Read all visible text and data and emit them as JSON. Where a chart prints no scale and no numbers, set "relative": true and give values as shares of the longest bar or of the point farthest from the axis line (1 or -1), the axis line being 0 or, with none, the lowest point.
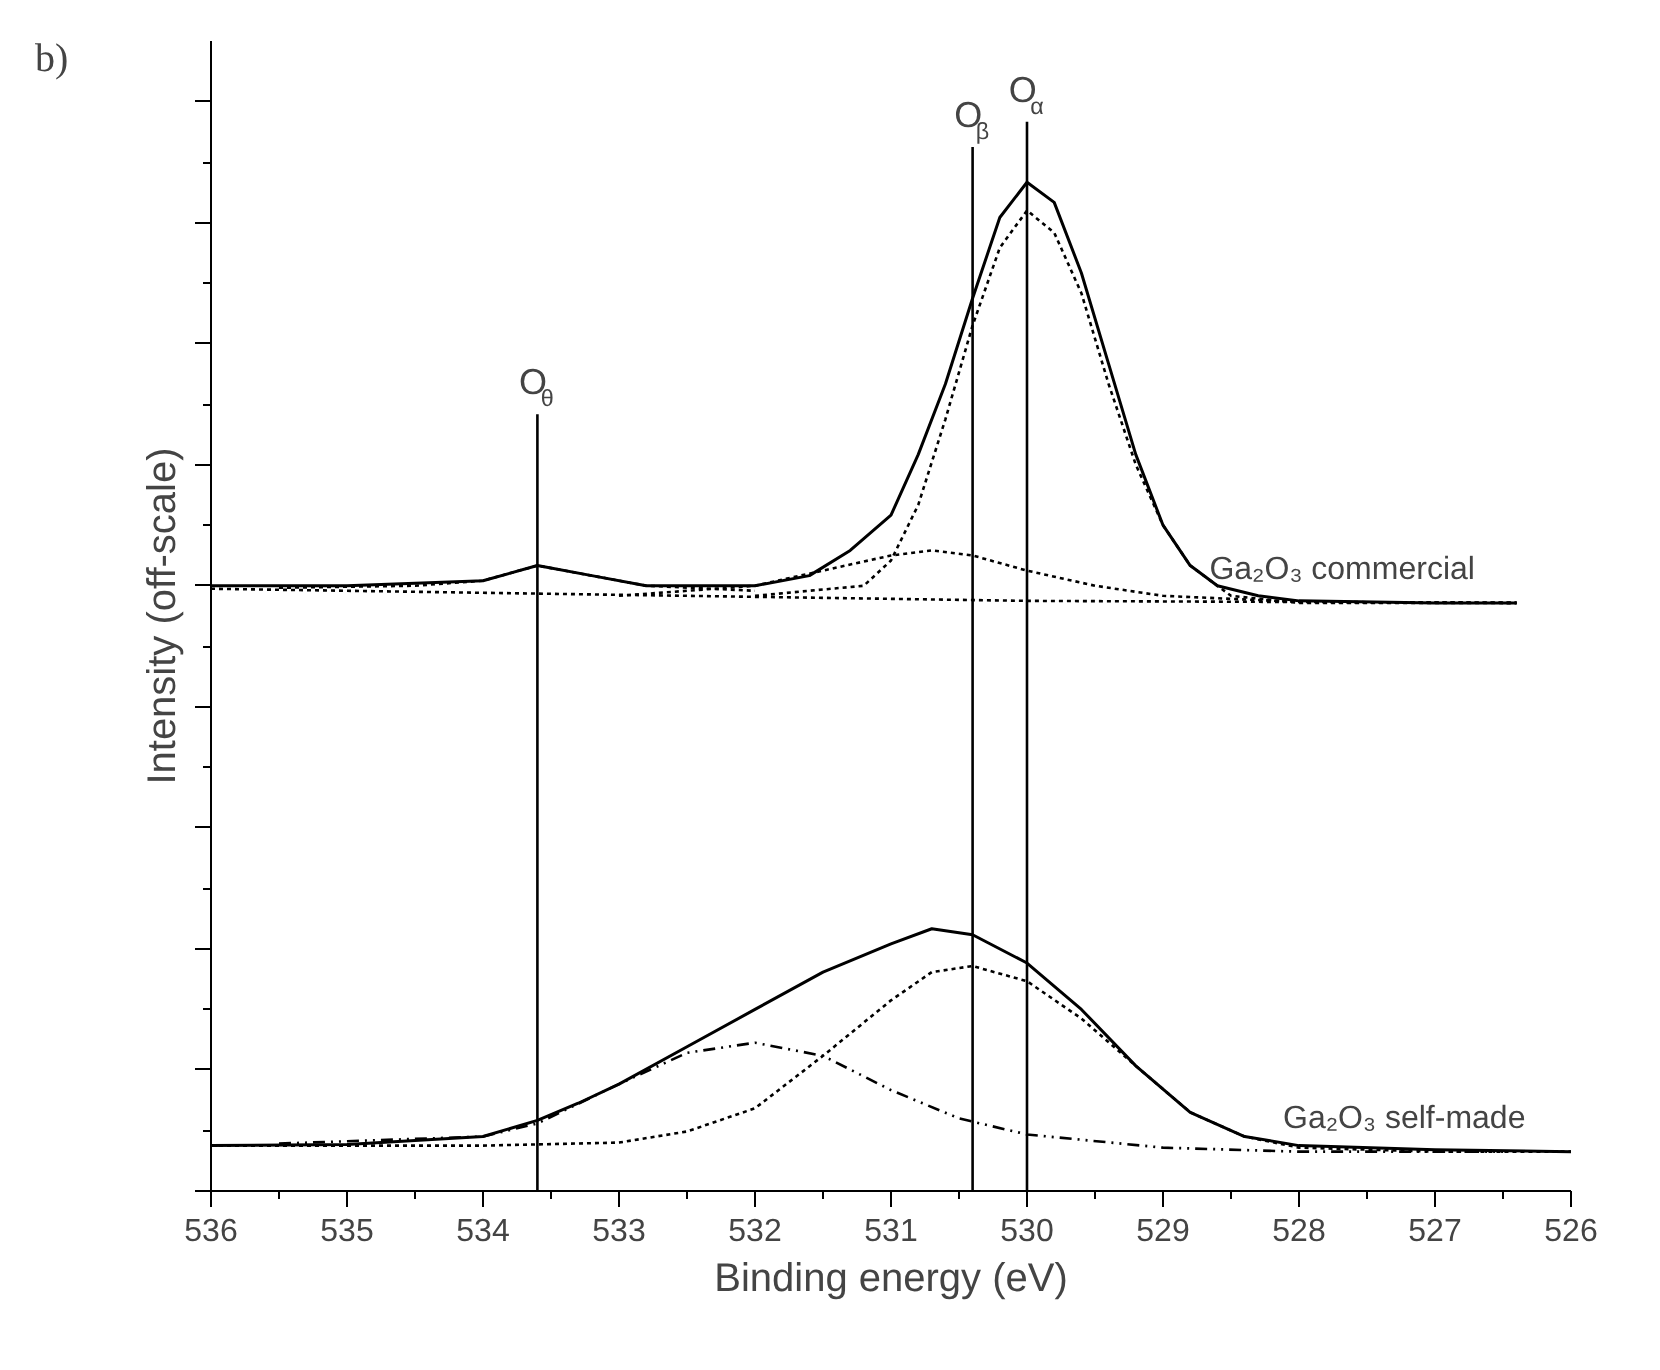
{
  "chart_data": {
    "type": "line",
    "relative": true,
    "title": "b)",
    "xlabel": "Binding energy (eV)",
    "ylabel": "Intensity (off-scale)",
    "xlim": [
      536,
      526
    ],
    "xticks": [
      536,
      535,
      534,
      533,
      532,
      531,
      530,
      529,
      528,
      527,
      526
    ],
    "tick_labels": "x",
    "grid": false,
    "series": [
      {
        "name": "Ga₂O₃ commercial",
        "color": "#000000",
        "line_style": "solid",
        "x": [
          536,
          535,
          534,
          533.6,
          533.2,
          532.8,
          532.4,
          532,
          531.6,
          531.3,
          531,
          530.8,
          530.6,
          530.4,
          530.2,
          530,
          529.8,
          529.6,
          529.4,
          529.2,
          529,
          528.8,
          528.6,
          528.3,
          528,
          527,
          526.4
        ],
        "values": [
          0.6,
          0.6,
          0.605,
          0.62,
          0.61,
          0.6,
          0.6,
          0.6,
          0.61,
          0.635,
          0.67,
          0.73,
          0.8,
          0.885,
          0.965,
          1.0,
          0.98,
          0.91,
          0.82,
          0.73,
          0.66,
          0.62,
          0.6,
          0.59,
          0.585,
          0.583,
          0.583
        ]
      },
      {
        "color": "#000000",
        "line_style": "dotted",
        "x": [
          532,
          531.2,
          531,
          530.8,
          530.6,
          530.4,
          530.2,
          530,
          529.8,
          529.6,
          529.4,
          529.2,
          529,
          528.8,
          528.5,
          528,
          526.4
        ],
        "values": [
          0.59,
          0.6,
          0.625,
          0.68,
          0.765,
          0.858,
          0.935,
          0.972,
          0.95,
          0.89,
          0.8,
          0.72,
          0.66,
          0.62,
          0.59,
          0.583,
          0.583
        ]
      },
      {
        "color": "#000000",
        "line_style": "dotted",
        "x": [
          533,
          532,
          531.5,
          531,
          530.7,
          530.4,
          530,
          529.5,
          529,
          528,
          526.4
        ],
        "values": [
          0.59,
          0.6,
          0.615,
          0.63,
          0.635,
          0.63,
          0.615,
          0.6,
          0.59,
          0.584,
          0.583
        ]
      },
      {
        "color": "#000000",
        "line_style": "dotted",
        "x": [
          535.5,
          534.5,
          534,
          533.6,
          533.2,
          532.8,
          532
        ],
        "values": [
          0.598,
          0.6,
          0.605,
          0.62,
          0.61,
          0.6,
          0.595
        ]
      },
      {
        "color": "#000000",
        "line_style": "dotted",
        "x": [
          536,
          530,
          526.4
        ],
        "values": [
          0.597,
          0.585,
          0.583
        ]
      },
      {
        "name": "Ga₂O₃ self-made",
        "color": "#000000",
        "line_style": "solid",
        "x": [
          536,
          535,
          534,
          533.6,
          533.3,
          533,
          532.5,
          532,
          531.5,
          531,
          530.7,
          530.4,
          530,
          529.6,
          529.2,
          528.8,
          528.4,
          528,
          527,
          526
        ],
        "values": [
          0.045,
          0.046,
          0.054,
          0.07,
          0.087,
          0.106,
          0.143,
          0.18,
          0.217,
          0.245,
          0.26,
          0.254,
          0.226,
          0.18,
          0.124,
          0.078,
          0.054,
          0.045,
          0.041,
          0.039
        ]
      },
      {
        "color": "#000000",
        "line_style": "dashed",
        "x": [
          535.5,
          534,
          533.6,
          533,
          532.5,
          532,
          531.5,
          531,
          530.5,
          530,
          529,
          528,
          526.5
        ],
        "values": [
          0.047,
          0.054,
          0.067,
          0.106,
          0.137,
          0.147,
          0.134,
          0.1,
          0.072,
          0.056,
          0.043,
          0.039,
          0.039
        ]
      },
      {
        "color": "#000000",
        "line_style": "dotted",
        "x": [
          536,
          534,
          533,
          532.5,
          532,
          531.5,
          531,
          530.7,
          530.4,
          530,
          529.6,
          529.2,
          528.8,
          528.4,
          528,
          527,
          526
        ],
        "values": [
          0.045,
          0.045,
          0.048,
          0.059,
          0.082,
          0.134,
          0.189,
          0.217,
          0.223,
          0.208,
          0.171,
          0.124,
          0.078,
          0.054,
          0.043,
          0.039,
          0.039
        ]
      }
    ],
    "ref_lines": [
      {
        "axis": "x",
        "value": 533.6,
        "label": "O$_{θ}$",
        "color": "#000000"
      },
      {
        "axis": "x",
        "value": 530.4,
        "label": "O$_{β}$",
        "color": "#000000"
      },
      {
        "axis": "x",
        "value": 530.0,
        "label": "O$_{α}$",
        "color": "#000000"
      }
    ]
  }
}
